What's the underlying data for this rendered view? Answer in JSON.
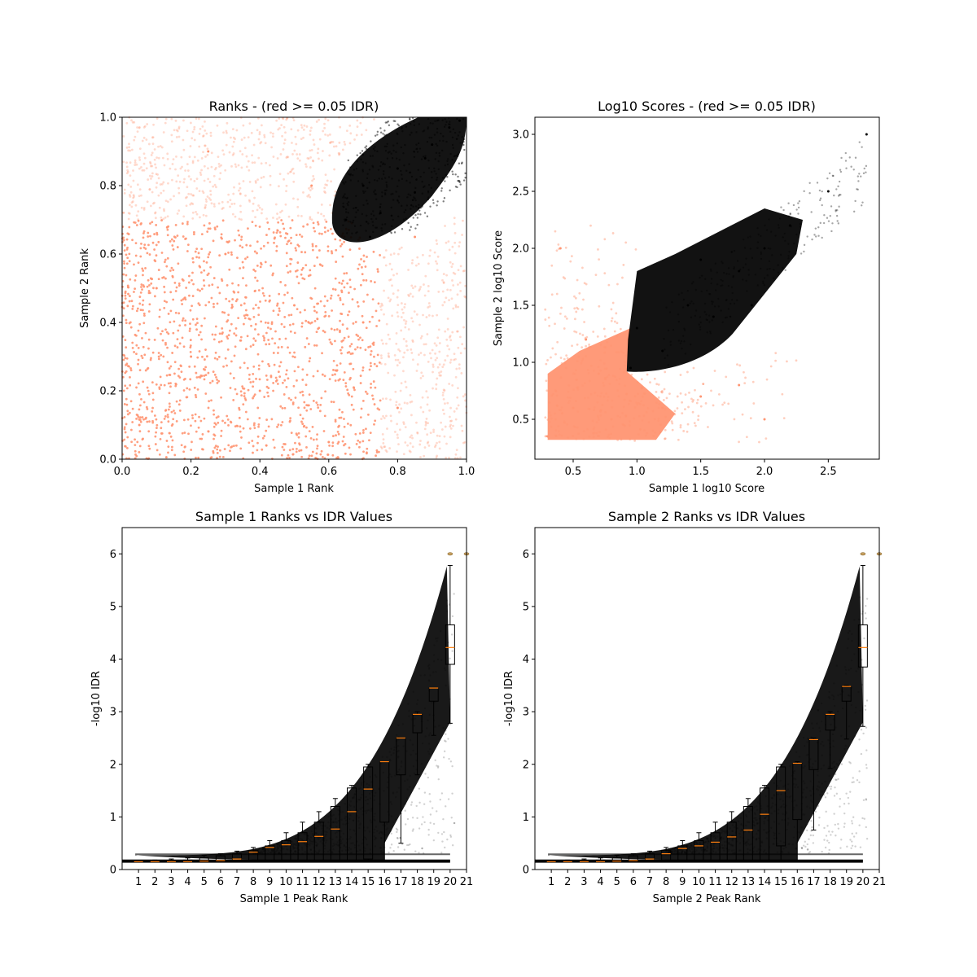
{
  "chart_data": [
    {
      "type": "scatter",
      "title": "Ranks - (red >= 0.05 IDR)",
      "xlabel": "Sample 1 Rank",
      "ylabel": "Sample 2 Rank",
      "xlim": [
        0,
        1
      ],
      "ylim": [
        0,
        1
      ],
      "xticks": [
        "0.0",
        "0.2",
        "0.4",
        "0.6",
        "0.8",
        "1.0"
      ],
      "yticks": [
        "0.0",
        "0.2",
        "0.4",
        "0.6",
        "0.8",
        "1.0"
      ],
      "grid": false,
      "colors": {
        "pass": "#000000",
        "fail": "#ff9572"
      },
      "series": [
        {
          "values_description_color": "#ff9572",
          "points": [
            [
              0.05,
              0.1
            ],
            [
              0.1,
              0.5
            ],
            [
              0.2,
              0.3
            ],
            [
              0.3,
              0.6
            ],
            [
              0.4,
              0.2
            ],
            [
              0.5,
              0.45
            ],
            [
              0.55,
              0.8
            ],
            [
              0.7,
              0.4
            ],
            [
              0.8,
              0.15
            ],
            [
              0.85,
              0.65
            ],
            [
              0.25,
              0.9
            ],
            [
              0.6,
              0.05
            ]
          ]
        },
        {
          "values_description_color": "#000000",
          "points": [
            [
              0.65,
              0.7
            ],
            [
              0.7,
              0.8
            ],
            [
              0.75,
              0.72
            ],
            [
              0.8,
              0.85
            ],
            [
              0.85,
              0.78
            ],
            [
              0.9,
              0.92
            ],
            [
              0.95,
              0.97
            ],
            [
              0.98,
              0.99
            ],
            [
              0.72,
              0.65
            ],
            [
              0.88,
              0.88
            ]
          ]
        }
      ]
    },
    {
      "type": "scatter",
      "title": "Log10 Scores - (red >= 0.05 IDR)",
      "xlabel": "Sample 1 log10 Score",
      "ylabel": "Sample 2 log10 Score",
      "xlim": [
        0.2,
        2.9
      ],
      "ylim": [
        0.15,
        3.15
      ],
      "xticks": [
        "0.5",
        "1.0",
        "1.5",
        "2.0",
        "2.5"
      ],
      "yticks": [
        "0.5",
        "1.0",
        "1.5",
        "2.0",
        "2.5",
        "3.0"
      ],
      "grid": false,
      "colors": {
        "pass": "#000000",
        "fail": "#ff9572"
      },
      "series": [
        {
          "values_description_color": "#ff9572",
          "points": [
            [
              0.3,
              0.35
            ],
            [
              0.5,
              0.6
            ],
            [
              0.7,
              0.9
            ],
            [
              0.8,
              0.5
            ],
            [
              1.2,
              0.6
            ],
            [
              1.5,
              0.7
            ],
            [
              0.6,
              1.2
            ],
            [
              0.4,
              2.0
            ],
            [
              2.0,
              0.5
            ],
            [
              1.8,
              0.8
            ]
          ]
        },
        {
          "values_description_color": "#000000",
          "points": [
            [
              0.95,
              0.95
            ],
            [
              1.0,
              1.3
            ],
            [
              1.2,
              1.1
            ],
            [
              1.4,
              1.5
            ],
            [
              1.6,
              1.4
            ],
            [
              1.8,
              1.8
            ],
            [
              2.0,
              2.0
            ],
            [
              2.2,
              2.2
            ],
            [
              2.5,
              2.5
            ],
            [
              2.8,
              3.0
            ],
            [
              1.5,
              1.9
            ],
            [
              1.9,
              1.5
            ]
          ]
        }
      ]
    },
    {
      "type": "scatter",
      "title": "Sample 1 Ranks vs IDR Values",
      "xlabel": "Sample 1 Peak Rank",
      "ylabel": "-log10 IDR",
      "xlim": [
        0,
        21
      ],
      "ylim": [
        0,
        6.5
      ],
      "xticks": [
        "1",
        "2",
        "3",
        "4",
        "5",
        "6",
        "7",
        "8",
        "9",
        "10",
        "11",
        "12",
        "13",
        "14",
        "15",
        "16",
        "17",
        "18",
        "19",
        "20",
        "21"
      ],
      "yticks": [
        "0",
        "1",
        "2",
        "3",
        "4",
        "5",
        "6"
      ],
      "grid": false,
      "boxplots": [
        {
          "position": 1,
          "q1": 0.15,
          "median": 0.15,
          "q3": 0.16,
          "whisker_low": 0.15,
          "whisker_high": 0.17
        },
        {
          "position": 2,
          "q1": 0.15,
          "median": 0.15,
          "q3": 0.16,
          "whisker_low": 0.15,
          "whisker_high": 0.18
        },
        {
          "position": 3,
          "q1": 0.15,
          "median": 0.15,
          "q3": 0.17,
          "whisker_low": 0.15,
          "whisker_high": 0.2
        },
        {
          "position": 4,
          "q1": 0.15,
          "median": 0.15,
          "q3": 0.18,
          "whisker_low": 0.15,
          "whisker_high": 0.22
        },
        {
          "position": 5,
          "q1": 0.15,
          "median": 0.16,
          "q3": 0.22,
          "whisker_low": 0.15,
          "whisker_high": 0.27
        },
        {
          "position": 6,
          "q1": 0.15,
          "median": 0.17,
          "q3": 0.26,
          "whisker_low": 0.15,
          "whisker_high": 0.3
        },
        {
          "position": 7,
          "q1": 0.15,
          "median": 0.2,
          "q3": 0.3,
          "whisker_low": 0.15,
          "whisker_high": 0.35
        },
        {
          "position": 8,
          "q1": 0.15,
          "median": 0.33,
          "q3": 0.36,
          "whisker_low": 0.15,
          "whisker_high": 0.42
        },
        {
          "position": 9,
          "q1": 0.15,
          "median": 0.42,
          "q3": 0.45,
          "whisker_low": 0.15,
          "whisker_high": 0.55
        },
        {
          "position": 10,
          "q1": 0.15,
          "median": 0.47,
          "q3": 0.55,
          "whisker_low": 0.15,
          "whisker_high": 0.7
        },
        {
          "position": 11,
          "q1": 0.15,
          "median": 0.53,
          "q3": 0.7,
          "whisker_low": 0.15,
          "whisker_high": 0.9
        },
        {
          "position": 12,
          "q1": 0.15,
          "median": 0.63,
          "q3": 0.9,
          "whisker_low": 0.15,
          "whisker_high": 1.1
        },
        {
          "position": 13,
          "q1": 0.15,
          "median": 0.77,
          "q3": 1.2,
          "whisker_low": 0.15,
          "whisker_high": 1.35
        },
        {
          "position": 14,
          "q1": 0.15,
          "median": 1.1,
          "q3": 1.55,
          "whisker_low": 0.15,
          "whisker_high": 1.6
        },
        {
          "position": 15,
          "q1": 0.2,
          "median": 1.53,
          "q3": 1.95,
          "whisker_low": 0.15,
          "whisker_high": 2.0
        },
        {
          "position": 16,
          "q1": 0.9,
          "median": 2.05,
          "q3": 2.05,
          "whisker_low": 0.15,
          "whisker_high": 2.05
        },
        {
          "position": 17,
          "q1": 1.8,
          "median": 2.5,
          "q3": 2.5,
          "whisker_low": 0.5,
          "whisker_high": 2.5
        },
        {
          "position": 18,
          "q1": 2.6,
          "median": 2.95,
          "q3": 2.95,
          "whisker_low": 1.8,
          "whisker_high": 3.0
        },
        {
          "position": 19,
          "q1": 3.2,
          "median": 3.45,
          "q3": 3.45,
          "whisker_low": 2.55,
          "whisker_high": 3.45
        },
        {
          "position": 20,
          "q1": 3.9,
          "median": 4.22,
          "q3": 4.65,
          "whisker_low": 2.78,
          "whisker_high": 5.78
        }
      ],
      "outliers": [
        {
          "position": 20,
          "value": 6.0
        },
        {
          "position": 21,
          "value": 6.0
        }
      ]
    },
    {
      "type": "scatter",
      "title": "Sample 2 Ranks vs IDR Values",
      "xlabel": "Sample 2 Peak Rank",
      "ylabel": "-log10 IDR",
      "xlim": [
        0,
        21
      ],
      "ylim": [
        0,
        6.5
      ],
      "xticks": [
        "1",
        "2",
        "3",
        "4",
        "5",
        "6",
        "7",
        "8",
        "9",
        "10",
        "11",
        "12",
        "13",
        "14",
        "15",
        "16",
        "17",
        "18",
        "19",
        "20",
        "21"
      ],
      "yticks": [
        "0",
        "1",
        "2",
        "3",
        "4",
        "5",
        "6"
      ],
      "grid": false,
      "boxplots": [
        {
          "position": 1,
          "q1": 0.15,
          "median": 0.15,
          "q3": 0.16,
          "whisker_low": 0.15,
          "whisker_high": 0.17
        },
        {
          "position": 2,
          "q1": 0.15,
          "median": 0.15,
          "q3": 0.16,
          "whisker_low": 0.15,
          "whisker_high": 0.18
        },
        {
          "position": 3,
          "q1": 0.15,
          "median": 0.15,
          "q3": 0.17,
          "whisker_low": 0.15,
          "whisker_high": 0.2
        },
        {
          "position": 4,
          "q1": 0.15,
          "median": 0.15,
          "q3": 0.18,
          "whisker_low": 0.15,
          "whisker_high": 0.22
        },
        {
          "position": 5,
          "q1": 0.15,
          "median": 0.16,
          "q3": 0.22,
          "whisker_low": 0.15,
          "whisker_high": 0.27
        },
        {
          "position": 6,
          "q1": 0.15,
          "median": 0.17,
          "q3": 0.26,
          "whisker_low": 0.15,
          "whisker_high": 0.3
        },
        {
          "position": 7,
          "q1": 0.15,
          "median": 0.2,
          "q3": 0.3,
          "whisker_low": 0.15,
          "whisker_high": 0.35
        },
        {
          "position": 8,
          "q1": 0.15,
          "median": 0.3,
          "q3": 0.36,
          "whisker_low": 0.15,
          "whisker_high": 0.42
        },
        {
          "position": 9,
          "q1": 0.15,
          "median": 0.4,
          "q3": 0.45,
          "whisker_low": 0.15,
          "whisker_high": 0.55
        },
        {
          "position": 10,
          "q1": 0.15,
          "median": 0.45,
          "q3": 0.55,
          "whisker_low": 0.15,
          "whisker_high": 0.7
        },
        {
          "position": 11,
          "q1": 0.15,
          "median": 0.52,
          "q3": 0.7,
          "whisker_low": 0.15,
          "whisker_high": 0.9
        },
        {
          "position": 12,
          "q1": 0.15,
          "median": 0.62,
          "q3": 0.9,
          "whisker_low": 0.15,
          "whisker_high": 1.1
        },
        {
          "position": 13,
          "q1": 0.15,
          "median": 0.75,
          "q3": 1.2,
          "whisker_low": 0.15,
          "whisker_high": 1.35
        },
        {
          "position": 14,
          "q1": 0.15,
          "median": 1.05,
          "q3": 1.55,
          "whisker_low": 0.15,
          "whisker_high": 1.6
        },
        {
          "position": 15,
          "q1": 0.45,
          "median": 1.5,
          "q3": 1.95,
          "whisker_low": 0.15,
          "whisker_high": 2.0
        },
        {
          "position": 16,
          "q1": 0.95,
          "median": 2.02,
          "q3": 2.02,
          "whisker_low": 0.15,
          "whisker_high": 2.05
        },
        {
          "position": 17,
          "q1": 1.9,
          "median": 2.47,
          "q3": 2.47,
          "whisker_low": 0.75,
          "whisker_high": 2.5
        },
        {
          "position": 18,
          "q1": 2.65,
          "median": 2.95,
          "q3": 2.95,
          "whisker_low": 1.92,
          "whisker_high": 3.0
        },
        {
          "position": 19,
          "q1": 3.2,
          "median": 3.48,
          "q3": 3.48,
          "whisker_low": 2.48,
          "whisker_high": 3.5
        },
        {
          "position": 20,
          "q1": 3.85,
          "median": 4.22,
          "q3": 4.65,
          "whisker_low": 2.72,
          "whisker_high": 5.78
        }
      ],
      "outliers": [
        {
          "position": 20,
          "value": 6.0
        },
        {
          "position": 21,
          "value": 6.0
        }
      ]
    }
  ]
}
